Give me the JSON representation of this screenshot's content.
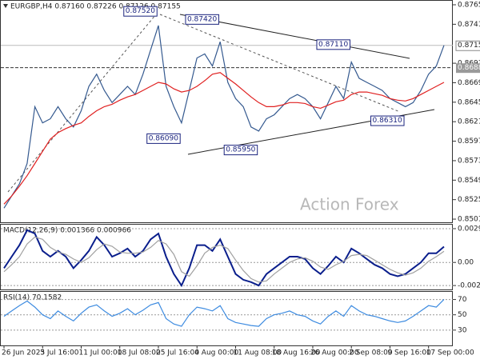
{
  "chart_data": [
    {
      "type": "line",
      "title": "EURGBP,H4 0.87160 0.87226 0.87126 0.87155",
      "watermark": "Action Forex",
      "categories": [
        "26 Jun 2025",
        null,
        null,
        null,
        null,
        "3 Jul 16:00",
        null,
        null,
        null,
        null,
        "11 Jul 00:00",
        null,
        null,
        null,
        null,
        "18 Jul 08:00",
        null,
        null,
        null,
        null,
        "25 Jul 16:00",
        null,
        null,
        null,
        null,
        "4 Aug 00:00",
        null,
        null,
        null,
        null,
        "11 Aug 08:00",
        null,
        null,
        null,
        null,
        "18 Aug 16:00",
        null,
        null,
        null,
        null,
        "26 Aug 00:00",
        null,
        null,
        null,
        null,
        "2 Sep 08:00",
        null,
        null,
        null,
        null,
        "9 Sep 16:00",
        null,
        null,
        null,
        null,
        "17 Sep 00:00",
        null,
        null
      ],
      "series": [
        {
          "color": "#34598f",
          "values": [
            0.8515,
            0.853,
            0.8545,
            0.857,
            0.864,
            0.862,
            0.8625,
            0.864,
            0.8625,
            0.8615,
            0.8635,
            0.8665,
            0.868,
            0.866,
            0.8645,
            0.8655,
            0.8665,
            0.8655,
            0.868,
            0.871,
            0.874,
            0.8665,
            0.864,
            0.862,
            0.866,
            0.87,
            0.8705,
            0.869,
            0.872,
            0.867,
            0.865,
            0.864,
            0.8615,
            0.861,
            0.8625,
            0.863,
            0.864,
            0.865,
            0.8655,
            0.865,
            0.864,
            0.8625,
            0.8645,
            0.8665,
            0.865,
            0.8695,
            0.8675,
            0.867,
            0.8665,
            0.866,
            0.865,
            0.8645,
            0.864,
            0.8645,
            0.866,
            0.868,
            0.869,
            0.87155
          ]
        },
        {
          "color": "#e02020",
          "values": [
            0.852,
            0.853,
            0.8542,
            0.8555,
            0.857,
            0.8585,
            0.86,
            0.8608,
            0.8613,
            0.8617,
            0.862,
            0.8628,
            0.8635,
            0.864,
            0.8643,
            0.8648,
            0.8652,
            0.8655,
            0.866,
            0.8665,
            0.867,
            0.8668,
            0.8662,
            0.8658,
            0.866,
            0.8665,
            0.8672,
            0.868,
            0.8682,
            0.8675,
            0.8668,
            0.866,
            0.8652,
            0.8645,
            0.864,
            0.864,
            0.8642,
            0.8645,
            0.8645,
            0.8644,
            0.864,
            0.8638,
            0.8642,
            0.8646,
            0.8648,
            0.8655,
            0.8658,
            0.8658,
            0.8656,
            0.8654,
            0.865,
            0.8648,
            0.8647,
            0.865,
            0.8655,
            0.866,
            0.8665,
            0.867
          ]
        }
      ],
      "pivots": {
        "values": [
          null,
          null,
          null,
          null,
          null,
          null,
          null,
          null,
          null,
          null,
          null,
          null,
          null,
          null,
          null,
          null,
          null,
          null,
          null,
          null,
          0.8752,
          null,
          null,
          0.8609,
          null,
          null,
          null,
          null,
          0.8742,
          null,
          null,
          null,
          null,
          0.8595,
          null,
          null,
          null,
          null,
          null,
          null,
          null,
          null,
          null,
          null,
          null,
          0.8711,
          null,
          null,
          null,
          null,
          null,
          null,
          0.8631,
          null,
          null,
          null,
          null,
          null
        ],
        "value_labels": [
          null,
          null,
          null,
          null,
          null,
          null,
          null,
          null,
          null,
          null,
          null,
          null,
          null,
          null,
          null,
          null,
          null,
          null,
          null,
          null,
          "0.87520",
          null,
          null,
          "0.86090",
          null,
          null,
          null,
          null,
          "0.87420",
          null,
          null,
          null,
          null,
          "0.85950",
          null,
          null,
          null,
          null,
          null,
          null,
          null,
          null,
          null,
          null,
          null,
          "0.87110",
          null,
          null,
          null,
          null,
          null,
          null,
          "0.86310",
          null,
          null,
          null,
          null,
          null
        ]
      },
      "level": {
        "value": 0.8688,
        "label": "0.86880"
      },
      "last_price": 0.87155,
      "ylim": [
        0.84986,
        0.87704
      ],
      "yticks": [
        0.87655,
        0.87415,
        0.86935,
        0.86695,
        0.86455,
        0.86215,
        0.85975,
        0.85735,
        0.85495,
        0.85255,
        0.85015
      ],
      "grid": false
    },
    {
      "type": "line",
      "title": "MACD(12,26,9) 0.001366 0.000966",
      "series": [
        {
          "color": "#0a1e8c",
          "values": [
            -0.0005,
            0.0005,
            0.0015,
            0.0028,
            0.0025,
            0.001,
            0.0005,
            0.001,
            0.0005,
            -0.0005,
            0.0002,
            0.001,
            0.0022,
            0.0015,
            0.0005,
            0.0008,
            0.0012,
            0.0005,
            0.001,
            0.002,
            0.0025,
            0.0005,
            -0.001,
            -0.002,
            -0.0005,
            0.0015,
            0.0015,
            0.001,
            0.002,
            0.0005,
            -0.001,
            -0.0015,
            -0.0017,
            -0.002,
            -0.001,
            -0.0005,
            0,
            0.0005,
            0.0005,
            0.0003,
            -0.0005,
            -0.001,
            -0.0003,
            0.0005,
            0,
            0.0012,
            0.0008,
            0.0003,
            -0.0002,
            -0.0005,
            -0.001,
            -0.0012,
            -0.001,
            -0.0005,
            0,
            0.0008,
            0.0008,
            0.001366
          ]
        },
        {
          "color": "#a0a0a0",
          "values": [
            -0.0008,
            -0.0002,
            0.0005,
            0.0016,
            0.0022,
            0.002,
            0.0013,
            0.0009,
            0.0007,
            0.0003,
            0,
            0.0004,
            0.0011,
            0.0016,
            0.0014,
            0.0009,
            0.0008,
            0.0008,
            0.0009,
            0.0013,
            0.0019,
            0.0016,
            0.0007,
            -0.0008,
            -0.0012,
            -0.0003,
            0.0008,
            0.0013,
            0.0015,
            0.0012,
            0.0002,
            -0.0007,
            -0.0014,
            -0.0017,
            -0.0016,
            -0.001,
            -0.0005,
            0,
            0.0003,
            0.0004,
            0.0001,
            -0.0004,
            -0.0006,
            -0.0002,
            0.0001,
            0.0006,
            0.0007,
            0.0006,
            0.0002,
            -0.0002,
            -0.0006,
            -0.0009,
            -0.0011,
            -0.0009,
            -0.0005,
            0.0001,
            0.0005,
            0.000966
          ]
        }
      ],
      "ylim": [
        -0.00234,
        0.00327
      ],
      "yticks": [
        0.002925,
        {
          "value": 0,
          "label": "0.00"
        },
        -0.002002
      ],
      "grid": true
    },
    {
      "type": "line",
      "title": "RSI(14) 70.1582",
      "series": [
        {
          "color": "#3d8be0",
          "values": [
            48,
            55,
            62,
            68,
            60,
            50,
            45,
            55,
            48,
            42,
            52,
            60,
            63,
            55,
            48,
            52,
            58,
            50,
            56,
            63,
            66,
            45,
            38,
            35,
            50,
            60,
            58,
            55,
            62,
            45,
            40,
            38,
            36,
            35,
            45,
            50,
            52,
            55,
            50,
            48,
            42,
            38,
            48,
            55,
            48,
            62,
            55,
            50,
            48,
            45,
            42,
            40,
            42,
            48,
            55,
            62,
            60,
            70.1582
          ]
        }
      ],
      "ylim": [
        10,
        80
      ],
      "yticks": [
        70,
        50,
        30
      ],
      "grid": true
    }
  ]
}
